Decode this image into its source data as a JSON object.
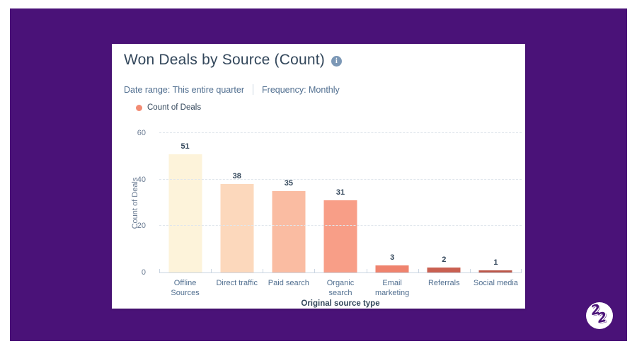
{
  "canvas": {
    "page_background": "#ffffff",
    "brand_purple": "#4a1278"
  },
  "report": {
    "title": "Won Deals by Source (Count)",
    "info_icon_glyph": "i",
    "meta": {
      "date_range": "Date range: This entire quarter",
      "frequency": "Frequency: Monthly"
    },
    "legend": {
      "label": "Count of Deals",
      "color": "#f28b73"
    }
  },
  "chart_data": {
    "type": "bar",
    "title": "Won Deals by Source (Count)",
    "series_name": "Count of Deals",
    "categories": [
      "Offline Sources",
      "Direct traffic",
      "Paid search",
      "Organic search",
      "Email marketing",
      "Referrals",
      "Social media"
    ],
    "values": [
      51,
      38,
      35,
      31,
      3,
      2,
      1
    ],
    "bar_colors": [
      "#fdf3da",
      "#fcd8bc",
      "#fabca2",
      "#f89e87",
      "#ef836e",
      "#c96051",
      "#bc584a"
    ],
    "xlabel": "Original source type",
    "ylabel": "Count of Deals",
    "yticks": [
      0,
      20,
      40,
      60
    ],
    "ylim": [
      0,
      60
    ],
    "grid": "horizontal-dashed",
    "legend_position": "top-left",
    "value_labels": "above-bars"
  },
  "logo": {
    "digit_left": "2",
    "digit_right": "2"
  }
}
